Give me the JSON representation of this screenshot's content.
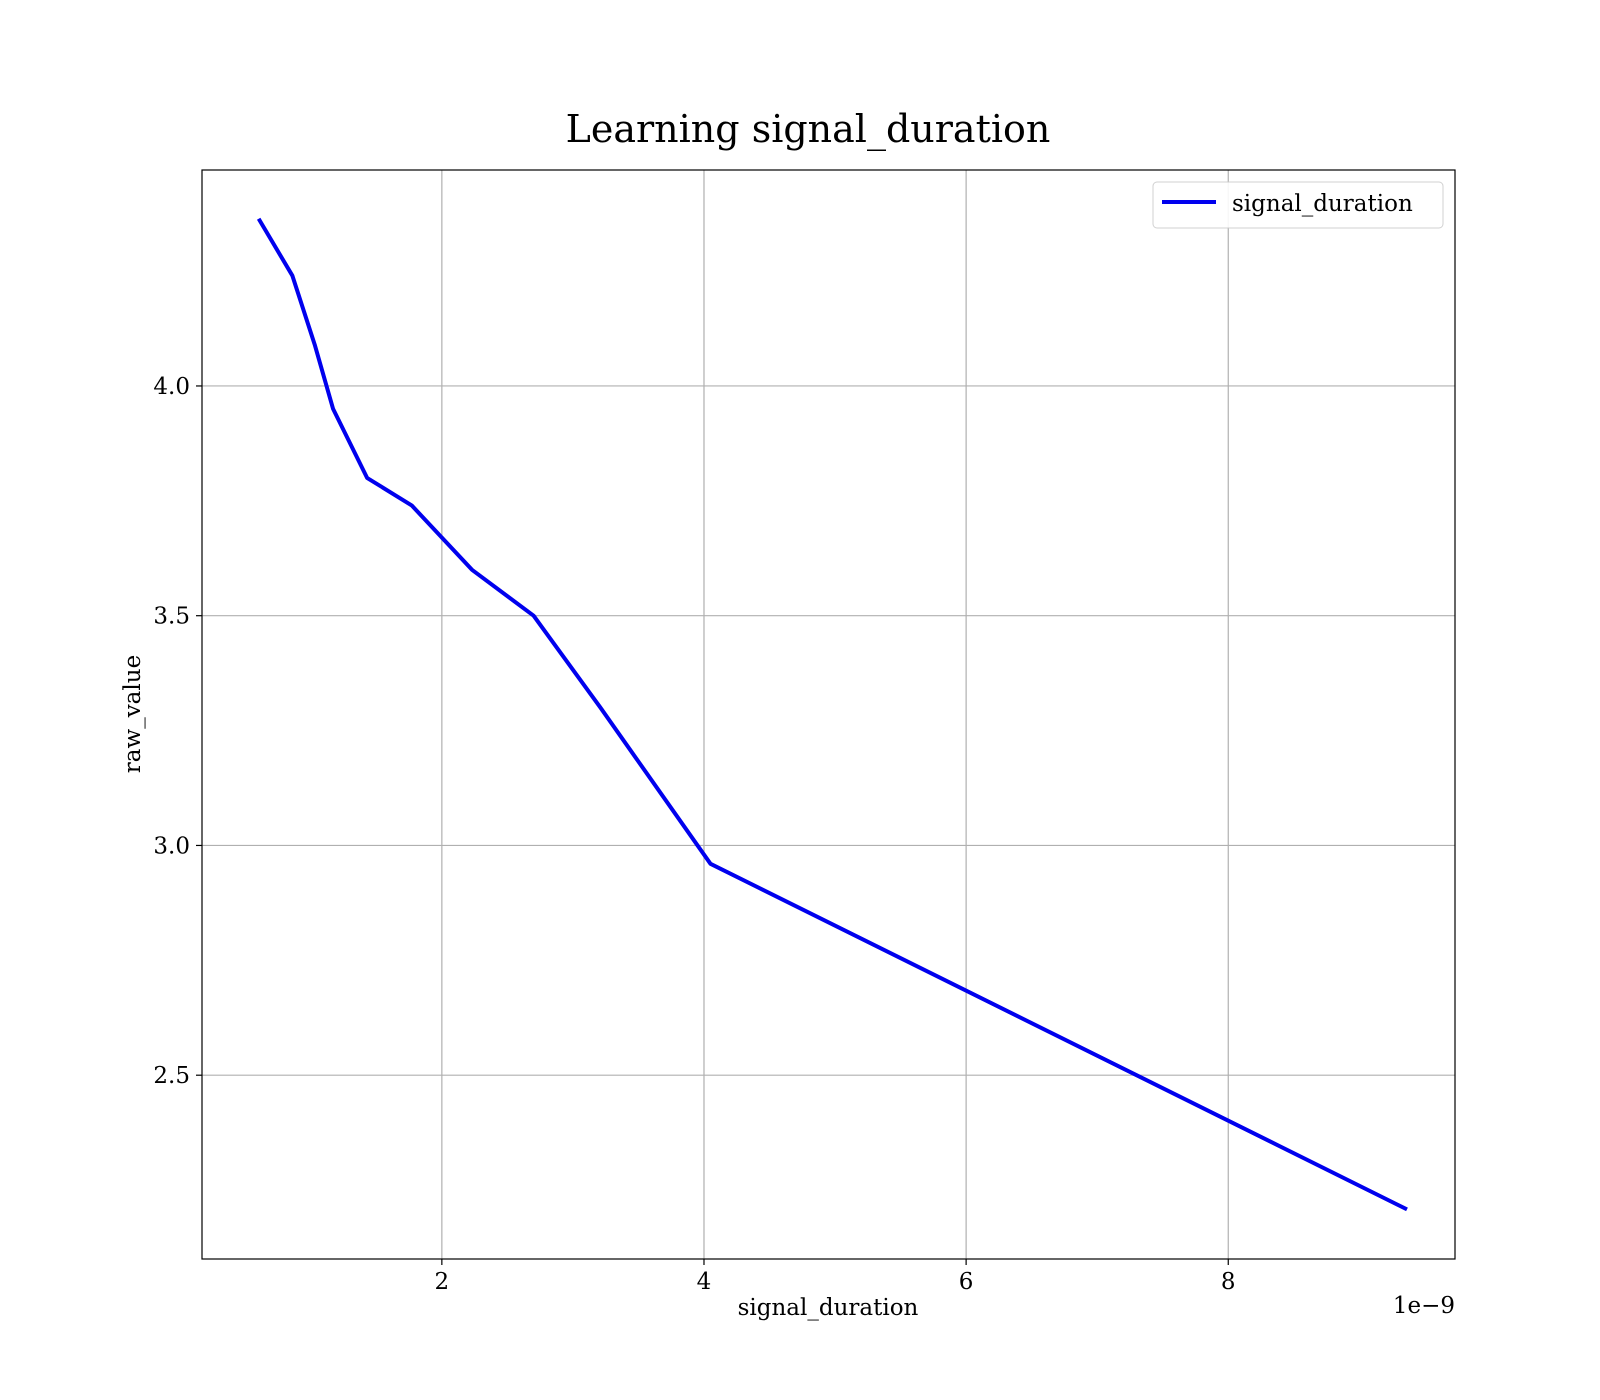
{
  "chart_data": {
    "type": "line",
    "title": "Learning signal_duration",
    "xlabel": "signal_duration",
    "ylabel": "raw_value",
    "x_offset_label": "1e−9",
    "xlim": [
      0.17,
      9.73
    ],
    "ylim": [
      2.1,
      4.47
    ],
    "x_ticks": [
      2,
      4,
      6,
      8
    ],
    "x_tick_labels": [
      "2",
      "4",
      "6",
      "8"
    ],
    "y_ticks": [
      2.5,
      3.0,
      3.5,
      4.0
    ],
    "y_tick_labels": [
      "2.5",
      "3.0",
      "3.5",
      "4.0"
    ],
    "grid": true,
    "legend_position": "top-right",
    "series": [
      {
        "name": "signal_duration",
        "color": "#0000ee",
        "x": [
          0.61,
          0.86,
          1.03,
          1.17,
          1.43,
          1.77,
          2.23,
          2.7,
          3.21,
          4.05,
          9.35
        ],
        "y": [
          4.36,
          4.24,
          4.09,
          3.95,
          3.8,
          3.74,
          3.6,
          3.5,
          3.3,
          2.96,
          2.21
        ]
      }
    ]
  }
}
